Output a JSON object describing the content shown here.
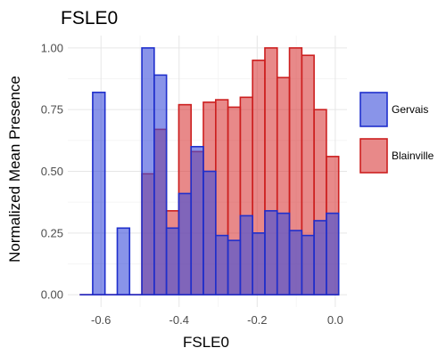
{
  "chart_data": {
    "type": "bar",
    "title": "FSLE0",
    "xlabel": "FSLE0",
    "ylabel": "Normalized Mean Presence",
    "xlim": [
      -0.685,
      0.03
    ],
    "ylim": [
      -0.05,
      1.05
    ],
    "x_ticks": [
      -0.6,
      -0.4,
      -0.2,
      0.0
    ],
    "x_tick_labels": [
      "-0.6",
      "-0.4",
      "-0.2",
      "0.0"
    ],
    "y_ticks": [
      0.0,
      0.25,
      0.5,
      0.75,
      1.0
    ],
    "y_tick_labels": [
      "0.00",
      "0.25",
      "0.50",
      "0.75",
      "1.00"
    ],
    "grid": true,
    "legend_position": "right",
    "bin_width": 0.0315,
    "bin_centers": [
      -0.637,
      -0.6055,
      -0.574,
      -0.5425,
      -0.511,
      -0.4795,
      -0.448,
      -0.4165,
      -0.385,
      -0.3535,
      -0.322,
      -0.2905,
      -0.259,
      -0.2275,
      -0.196,
      -0.1645,
      -0.133,
      -0.1015,
      -0.07,
      -0.0385,
      -0.007
    ],
    "series": [
      {
        "name": "Blainville",
        "fill": "#d93b3b",
        "stroke": "#cc1f1f",
        "values": [
          0,
          0,
          0,
          0,
          0,
          0.49,
          0.67,
          0.34,
          0.77,
          0.58,
          0.78,
          0.79,
          0.76,
          0.8,
          0.95,
          1.0,
          0.88,
          1.0,
          0.97,
          0.75,
          0.56
        ]
      },
      {
        "name": "Gervais",
        "fill": "#3b4cdb",
        "stroke": "#1f2fcc",
        "values": [
          0,
          0.82,
          0,
          0.27,
          0,
          1.0,
          0.89,
          0.27,
          0.41,
          0.6,
          0.5,
          0.24,
          0.22,
          0.32,
          0.25,
          0.34,
          0.33,
          0.26,
          0.24,
          0.3,
          0.33
        ]
      }
    ]
  }
}
